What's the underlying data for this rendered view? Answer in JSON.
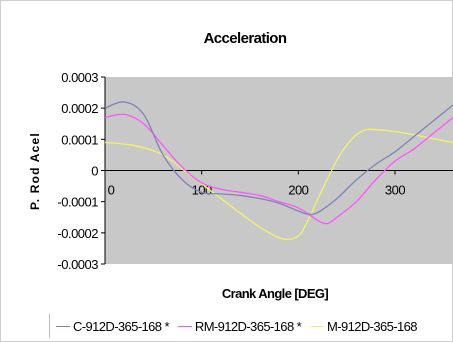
{
  "chart_data": {
    "type": "line",
    "title": "Acceleration",
    "xlabel": "Crank Angle [DEG]",
    "ylabel": "P. Rod Acel",
    "xlim": [
      0,
      360
    ],
    "ylim": [
      -0.0003,
      0.0003
    ],
    "x_ticks": [
      "0",
      "100",
      "200",
      "300"
    ],
    "y_ticks": [
      "0.0003",
      "0.0002",
      "0.0001",
      "0",
      "-0.0001",
      "-0.0002",
      "-0.0003"
    ],
    "grid": false,
    "legend_position": "bottom",
    "plot_background": "#c8c8c8",
    "series": [
      {
        "name": "C-912D-365-168 *",
        "color": "#7f83b5",
        "x": [
          0,
          20,
          40,
          60,
          80,
          100,
          120,
          140,
          160,
          180,
          200,
          210,
          220,
          240,
          260,
          280,
          300,
          320,
          340,
          360
        ],
        "y": [
          0.0002,
          0.00022,
          0.00018,
          5e-05,
          -3e-05,
          -7e-05,
          -7.5e-05,
          -8e-05,
          -9e-05,
          -0.000105,
          -0.00013,
          -0.00014,
          -0.000135,
          -9e-05,
          -3e-05,
          2e-05,
          6e-05,
          0.00011,
          0.00016,
          0.00021
        ]
      },
      {
        "name": "RM-912D-365-168 *",
        "color": "#ff55ff",
        "x": [
          0,
          20,
          40,
          60,
          80,
          100,
          120,
          140,
          160,
          180,
          200,
          220,
          230,
          240,
          260,
          280,
          300,
          320,
          340,
          360
        ],
        "y": [
          0.00017,
          0.00018,
          0.00015,
          8e-05,
          1e-05,
          -4e-05,
          -6e-05,
          -7e-05,
          -8e-05,
          -0.0001,
          -0.00012,
          -0.00016,
          -0.00017,
          -0.00015,
          -0.0001,
          -3e-05,
          3e-05,
          7e-05,
          0.00012,
          0.00017
        ]
      },
      {
        "name": "M-912D-365-168",
        "color": "#f3f36a",
        "x": [
          0,
          30,
          60,
          90,
          120,
          150,
          170,
          185,
          200,
          210,
          225,
          245,
          265,
          285,
          310,
          335,
          360
        ],
        "y": [
          9e-05,
          8e-05,
          5e-05,
          -2e-05,
          -9e-05,
          -0.00016,
          -0.0002,
          -0.00022,
          -0.00021,
          -0.00016,
          -6e-05,
          6e-05,
          0.000125,
          0.00013,
          0.00012,
          0.000105,
          9e-05
        ]
      }
    ]
  }
}
